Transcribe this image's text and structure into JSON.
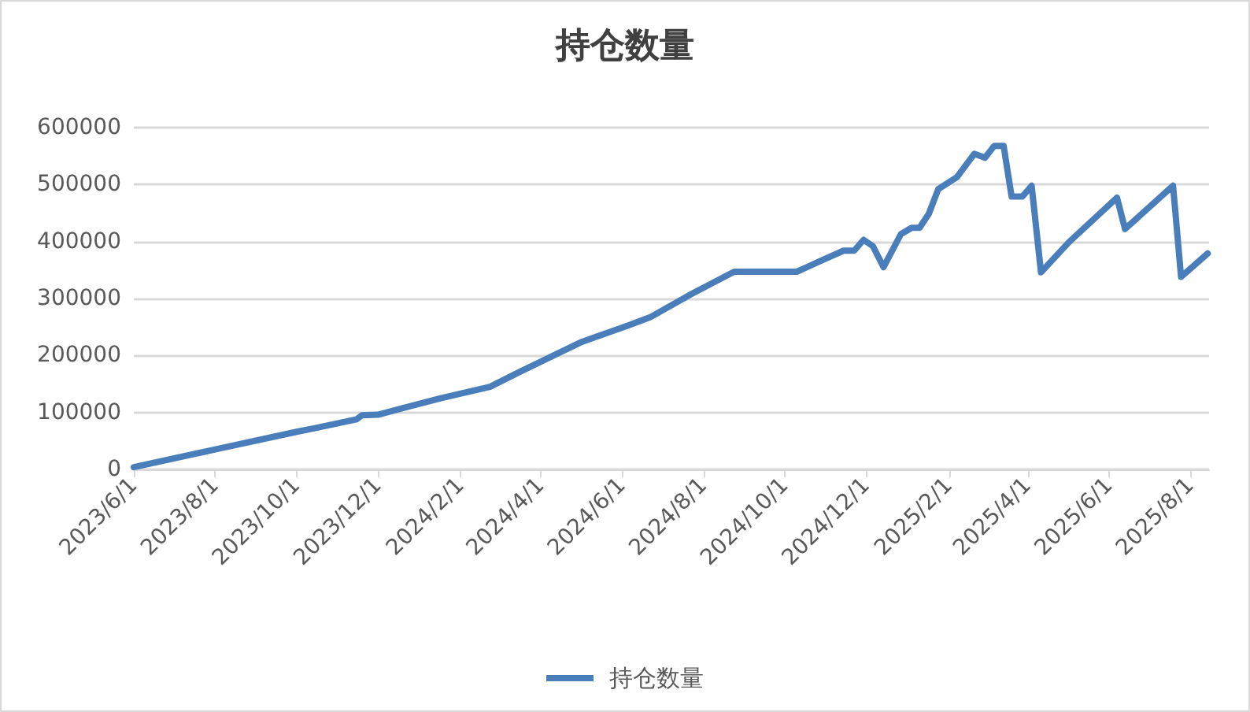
{
  "chart_data": {
    "type": "line",
    "title": "持仓数量",
    "legend": "bottom",
    "grid": "y",
    "marker": "none",
    "line_style": "solid",
    "xlim": [
      "2023-06-01",
      "2025-08-15"
    ],
    "xticks": [
      {
        "value": "2023-06-01",
        "label": "2023/6/1"
      },
      {
        "value": "2023-08-01",
        "label": "2023/8/1"
      },
      {
        "value": "2023-10-01",
        "label": "2023/10/1"
      },
      {
        "value": "2023-12-01",
        "label": "2023/12/1"
      },
      {
        "value": "2024-02-01",
        "label": "2024/2/1"
      },
      {
        "value": "2024-04-01",
        "label": "2024/4/1"
      },
      {
        "value": "2024-06-01",
        "label": "2024/6/1"
      },
      {
        "value": "2024-08-01",
        "label": "2024/8/1"
      },
      {
        "value": "2024-10-01",
        "label": "2024/10/1"
      },
      {
        "value": "2024-12-01",
        "label": "2024/12/1"
      },
      {
        "value": "2025-02-01",
        "label": "2025/2/1"
      },
      {
        "value": "2025-04-01",
        "label": "2025/4/1"
      },
      {
        "value": "2025-06-01",
        "label": "2025/6/1"
      },
      {
        "value": "2025-08-01",
        "label": "2025/8/1"
      }
    ],
    "ylim": [
      0,
      600000
    ],
    "yticks": [
      0,
      100000,
      200000,
      300000,
      400000,
      500000,
      600000
    ],
    "x": [
      "2023-06-01",
      "2023-08-01",
      "2023-10-01",
      "2023-10-14",
      "2023-11-15",
      "2023-11-19",
      "2023-12-01",
      "2024-01-17",
      "2024-02-23",
      "2024-03-16",
      "2024-05-02",
      "2024-06-06",
      "2024-06-22",
      "2024-07-23",
      "2024-08-24",
      "2024-10-10",
      "2024-10-26",
      "2024-11-14",
      "2024-11-22",
      "2024-11-29",
      "2024-12-06",
      "2024-12-14",
      "2024-12-27",
      "2025-01-04",
      "2025-01-10",
      "2025-01-17",
      "2025-01-24",
      "2025-02-07",
      "2025-02-20",
      "2025-02-28",
      "2025-03-07",
      "2025-03-14",
      "2025-03-20",
      "2025-03-28",
      "2025-04-04",
      "2025-04-11",
      "2025-05-02",
      "2025-06-07",
      "2025-06-13",
      "2025-07-19",
      "2025-07-25",
      "2025-08-14"
    ],
    "series": [
      {
        "name": "持仓数量",
        "color": "#4a7ebb",
        "values": [
          4000,
          35000,
          66000,
          72000,
          88000,
          95000,
          96000,
          125000,
          145000,
          171000,
          224000,
          253000,
          267000,
          308000,
          347000,
          347000,
          364000,
          384000,
          384000,
          403000,
          392000,
          355000,
          413000,
          424000,
          424000,
          449000,
          492000,
          513000,
          554000,
          547000,
          568000,
          568000,
          479000,
          479000,
          498000,
          346000,
          399000,
          477000,
          422000,
          498000,
          338000,
          379000
        ]
      }
    ]
  }
}
